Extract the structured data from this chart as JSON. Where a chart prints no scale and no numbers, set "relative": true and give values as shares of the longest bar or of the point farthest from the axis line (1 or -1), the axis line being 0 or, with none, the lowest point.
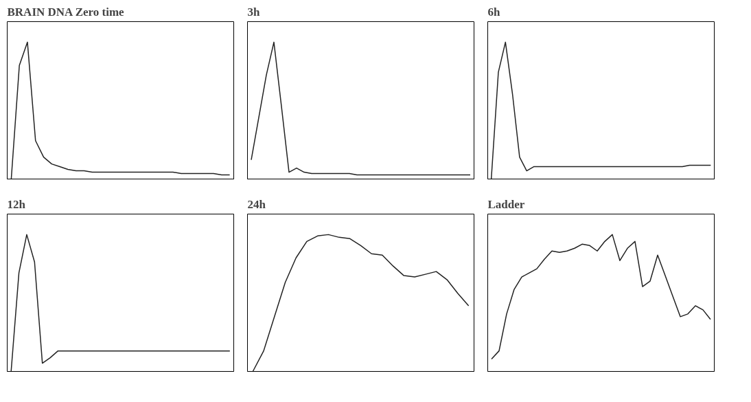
{
  "chart_data": [
    {
      "type": "line",
      "title": "BRAIN DNA Zero time",
      "relative": true,
      "grid": false,
      "categories": [
        null,
        null,
        null,
        null,
        null,
        null,
        null,
        null,
        null,
        null,
        null,
        null,
        null,
        null,
        null,
        null,
        null,
        null,
        null,
        null,
        null,
        null,
        null,
        null,
        null,
        null,
        null,
        null
      ],
      "series": [
        {
          "color": "#222222",
          "values": [
            0,
            0.83,
            1.0,
            0.28,
            0.16,
            0.11,
            0.09,
            0.07,
            0.06,
            0.06,
            0.05,
            0.05,
            0.05,
            0.05,
            0.05,
            0.05,
            0.05,
            0.05,
            0.05,
            0.05,
            0.05,
            0.04,
            0.04,
            0.04,
            0.04,
            0.04,
            0.03,
            0.03
          ]
        }
      ]
    },
    {
      "type": "line",
      "title": "3h",
      "relative": true,
      "grid": false,
      "categories": [
        null,
        null,
        null,
        null,
        null,
        null,
        null,
        null,
        null,
        null,
        null,
        null,
        null,
        null,
        null,
        null,
        null,
        null,
        null,
        null,
        null,
        null,
        null,
        null,
        null,
        null,
        null,
        null,
        null,
        null
      ],
      "series": [
        {
          "color": "#222222",
          "values": [
            0.14,
            0.45,
            0.76,
            1.0,
            0.53,
            0.05,
            0.08,
            0.05,
            0.04,
            0.04,
            0.04,
            0.04,
            0.04,
            0.04,
            0.03,
            0.03,
            0.03,
            0.03,
            0.03,
            0.03,
            0.03,
            0.03,
            0.03,
            0.03,
            0.03,
            0.03,
            0.03,
            0.03,
            0.03,
            0.03
          ]
        }
      ]
    },
    {
      "type": "line",
      "title": "6h",
      "relative": true,
      "grid": false,
      "categories": [
        null,
        null,
        null,
        null,
        null,
        null,
        null,
        null,
        null,
        null,
        null,
        null,
        null,
        null,
        null,
        null,
        null,
        null,
        null,
        null,
        null,
        null,
        null,
        null,
        null,
        null,
        null,
        null,
        null,
        null,
        null,
        null
      ],
      "series": [
        {
          "color": "#222222",
          "values": [
            0,
            0.78,
            1.0,
            0.62,
            0.16,
            0.06,
            0.09,
            0.09,
            0.09,
            0.09,
            0.09,
            0.09,
            0.09,
            0.09,
            0.09,
            0.09,
            0.09,
            0.09,
            0.09,
            0.09,
            0.09,
            0.09,
            0.09,
            0.09,
            0.09,
            0.09,
            0.09,
            0.09,
            0.1,
            0.1,
            0.1,
            0.1
          ]
        }
      ]
    },
    {
      "type": "line",
      "title": "12h",
      "relative": true,
      "grid": false,
      "categories": [
        null,
        null,
        null,
        null,
        null,
        null,
        null,
        null,
        null,
        null,
        null,
        null,
        null,
        null,
        null,
        null,
        null,
        null,
        null,
        null,
        null,
        null,
        null,
        null,
        null,
        null,
        null,
        null,
        null
      ],
      "series": [
        {
          "color": "#222222",
          "values": [
            0,
            0.72,
            1.0,
            0.8,
            0.06,
            0.1,
            0.15,
            0.15,
            0.15,
            0.15,
            0.15,
            0.15,
            0.15,
            0.15,
            0.15,
            0.15,
            0.15,
            0.15,
            0.15,
            0.15,
            0.15,
            0.15,
            0.15,
            0.15,
            0.15,
            0.15,
            0.15,
            0.15,
            0.15
          ]
        }
      ]
    },
    {
      "type": "line",
      "title": "24h",
      "relative": true,
      "grid": false,
      "categories": [
        null,
        null,
        null,
        null,
        null,
        null,
        null,
        null,
        null,
        null,
        null,
        null,
        null,
        null,
        null,
        null,
        null,
        null,
        null,
        null,
        null
      ],
      "series": [
        {
          "color": "#222222",
          "values": [
            0,
            0.15,
            0.4,
            0.65,
            0.83,
            0.95,
            0.99,
            1.0,
            0.98,
            0.97,
            0.92,
            0.86,
            0.85,
            0.77,
            0.7,
            0.69,
            0.71,
            0.73,
            0.67,
            0.57,
            0.48
          ]
        }
      ]
    },
    {
      "type": "line",
      "title": "Ladder",
      "relative": true,
      "grid": false,
      "categories": [
        null,
        null,
        null,
        null,
        null,
        null,
        null,
        null,
        null,
        null,
        null,
        null,
        null,
        null,
        null,
        null,
        null,
        null,
        null,
        null,
        null,
        null,
        null,
        null,
        null,
        null,
        null,
        null,
        null,
        null
      ],
      "series": [
        {
          "color": "#222222",
          "values": [
            0.09,
            0.15,
            0.42,
            0.6,
            0.69,
            0.72,
            0.75,
            0.82,
            0.88,
            0.87,
            0.88,
            0.9,
            0.93,
            0.92,
            0.88,
            0.95,
            1.0,
            0.81,
            0.9,
            0.95,
            0.62,
            0.66,
            0.85,
            0.7,
            0.55,
            0.4,
            0.42,
            0.48,
            0.45,
            0.38
          ]
        }
      ]
    }
  ]
}
